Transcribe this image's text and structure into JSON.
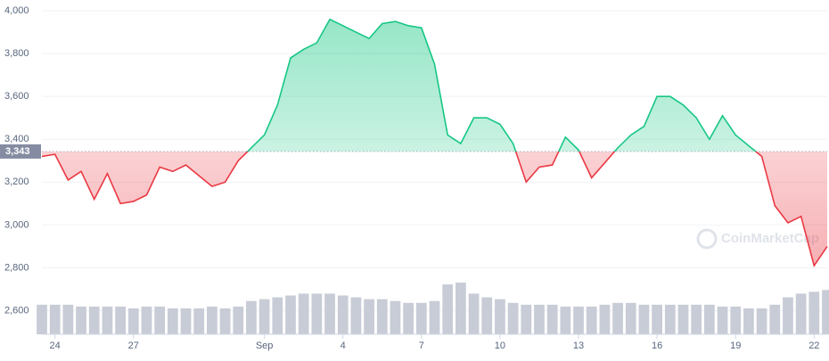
{
  "chart_data": {
    "type": "line",
    "categories": [
      null,
      "24",
      null,
      null,
      null,
      null,
      null,
      "27",
      null,
      null,
      null,
      null,
      null,
      null,
      null,
      null,
      null,
      "Sep",
      null,
      null,
      null,
      null,
      null,
      "4",
      null,
      null,
      null,
      null,
      null,
      "7",
      null,
      null,
      null,
      null,
      null,
      "10",
      null,
      null,
      null,
      null,
      null,
      "13",
      null,
      null,
      null,
      null,
      null,
      "16",
      null,
      null,
      null,
      null,
      null,
      "19",
      null,
      null,
      null,
      null,
      null,
      "22",
      null
    ],
    "series": [
      {
        "name": "Price",
        "values": [
          3320,
          3330,
          3210,
          3250,
          3120,
          3240,
          3100,
          3110,
          3140,
          3270,
          3250,
          3280,
          3230,
          3180,
          3200,
          3300,
          3360,
          3420,
          3560,
          3780,
          3820,
          3850,
          3960,
          3930,
          3900,
          3870,
          3940,
          3950,
          3930,
          3920,
          3750,
          3420,
          3380,
          3500,
          3500,
          3470,
          3380,
          3200,
          3270,
          3280,
          3410,
          3350,
          3220,
          3290,
          3360,
          3420,
          3460,
          3600,
          3600,
          3560,
          3500,
          3400,
          3510,
          3420,
          3370,
          3320,
          3090,
          3010,
          3040,
          2810,
          2900
        ]
      },
      {
        "name": "Volume",
        "values": [
          16,
          16,
          16,
          15,
          15,
          15,
          15,
          14,
          15,
          15,
          14,
          14,
          14,
          15,
          14,
          15,
          18,
          19,
          20,
          21,
          22,
          22,
          22,
          21,
          20,
          19,
          19,
          18,
          17,
          17,
          18,
          27,
          28,
          22,
          20,
          19,
          17,
          16,
          16,
          16,
          15,
          15,
          15,
          16,
          17,
          17,
          16,
          16,
          16,
          16,
          16,
          16,
          15,
          15,
          14,
          14,
          16,
          20,
          22,
          23,
          24
        ]
      }
    ],
    "baseline": {
      "value": 3343,
      "label": "3,343"
    },
    "ylim": [
      2490,
      4050
    ],
    "yticks": [
      {
        "value": 2600,
        "label": "2,600"
      },
      {
        "value": 2800,
        "label": "2,800"
      },
      {
        "value": 3000,
        "label": "3,000"
      },
      {
        "value": 3200,
        "label": "3,200"
      },
      {
        "value": 3400,
        "label": "3,400"
      },
      {
        "value": 3600,
        "label": "3,600"
      },
      {
        "value": 3800,
        "label": "3,800"
      },
      {
        "value": 4000,
        "label": "4,000"
      }
    ],
    "up_color": "#16c784",
    "down_color": "#ea3943",
    "volume_color": "#c8ccd6",
    "grid": true,
    "watermark": "CoinMarketCap"
  }
}
